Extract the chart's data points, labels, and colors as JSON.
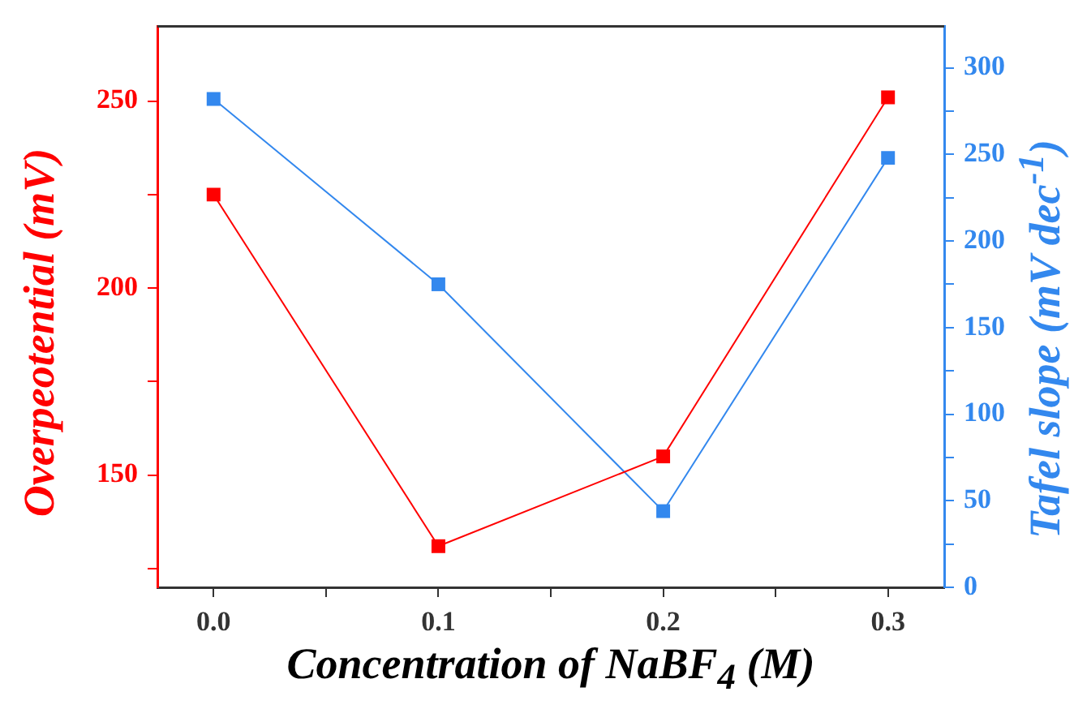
{
  "chart_data": {
    "type": "line",
    "xlabel": "Concentration of NaBF$_{4}$ (M)",
    "ylabel": "Overpeotential (mV)",
    "y2label": "Tafel slope (mV dec$^{-1}$)",
    "x": [
      0.0,
      0.1,
      0.2,
      0.3
    ],
    "series": [
      {
        "color": "#ff0000",
        "values": [
          225,
          131,
          155,
          251
        ],
        "axis": "y"
      },
      {
        "color": "#3388ee",
        "values": [
          282,
          175,
          44,
          248
        ],
        "axis": "y2"
      }
    ],
    "xlim": [
      -0.025,
      0.325
    ],
    "xticks": [
      {
        "value": 0,
        "label": "0.0"
      },
      {
        "value": 0.05,
        "label": null
      },
      {
        "value": 0.1,
        "label": "0.1"
      },
      {
        "value": 0.15,
        "label": null
      },
      {
        "value": 0.2,
        "label": "0.2"
      },
      {
        "value": 0.25,
        "label": null
      },
      {
        "value": 0.3,
        "label": "0.3"
      }
    ],
    "ylim": [
      120,
      270
    ],
    "yticks": [
      {
        "value": 125,
        "label": null
      },
      150,
      {
        "value": 175,
        "label": null
      },
      200,
      {
        "value": 225,
        "label": null
      },
      250
    ],
    "y2lim": [
      0,
      324
    ],
    "y2ticks": [
      0,
      {
        "value": 25,
        "label": null
      },
      50,
      {
        "value": 75,
        "label": null
      },
      100,
      {
        "value": 125,
        "label": null
      },
      150,
      {
        "value": 175,
        "label": null
      },
      200,
      {
        "value": 225,
        "label": null
      },
      250,
      {
        "value": 275,
        "label": null
      },
      300
    ],
    "marker": "square",
    "line_style": "solid",
    "grid": false,
    "legend": false
  }
}
